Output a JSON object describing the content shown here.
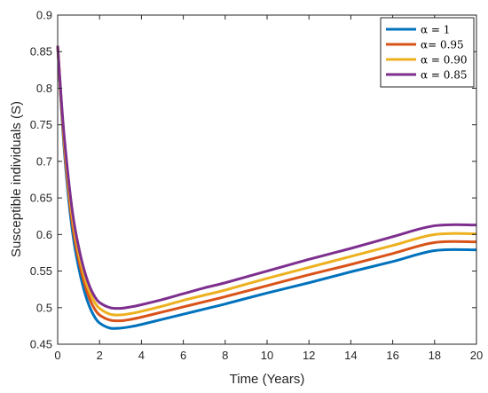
{
  "chart_data": {
    "type": "line",
    "title": "",
    "xlabel": "Time (Years)",
    "ylabel": "Susceptible individuals (S)",
    "xlim": [
      0,
      20
    ],
    "ylim": [
      0.45,
      0.9
    ],
    "xticks": [
      0,
      2,
      4,
      6,
      8,
      10,
      12,
      14,
      16,
      18,
      20
    ],
    "yticks": [
      0.45,
      0.5,
      0.55,
      0.6,
      0.65,
      0.7,
      0.75,
      0.8,
      0.85,
      0.9
    ],
    "xtick_labels": [
      "0",
      "2",
      "4",
      "6",
      "8",
      "10",
      "12",
      "14",
      "16",
      "18",
      "20"
    ],
    "ytick_labels": [
      "0.45",
      "0.5",
      "0.55",
      "0.6",
      "0.65",
      "0.7",
      "0.75",
      "0.8",
      "0.85",
      "0.9"
    ],
    "grid": false,
    "legend_position": "top-right",
    "x": [
      0,
      0.25,
      0.5,
      0.75,
      1,
      1.25,
      1.5,
      1.75,
      2,
      2.5,
      3,
      3.5,
      4,
      5,
      6,
      7,
      8,
      10,
      12,
      14,
      16,
      18,
      20
    ],
    "series": [
      {
        "name": "α = 1",
        "color": "#0072BD",
        "values": [
          0.858,
          0.74,
          0.655,
          0.595,
          0.555,
          0.525,
          0.503,
          0.488,
          0.479,
          0.472,
          0.472,
          0.474,
          0.477,
          0.484,
          0.491,
          0.498,
          0.505,
          0.52,
          0.534,
          0.549,
          0.563,
          0.578,
          0.579
        ]
      },
      {
        "name": "α= 0.95",
        "color": "#D95319",
        "values": [
          0.858,
          0.745,
          0.664,
          0.605,
          0.566,
          0.536,
          0.514,
          0.499,
          0.49,
          0.483,
          0.482,
          0.484,
          0.487,
          0.494,
          0.501,
          0.508,
          0.515,
          0.53,
          0.545,
          0.559,
          0.574,
          0.589,
          0.59
        ]
      },
      {
        "name": "α = 0.90",
        "color": "#EDB120",
        "values": [
          0.858,
          0.75,
          0.672,
          0.614,
          0.575,
          0.545,
          0.523,
          0.508,
          0.499,
          0.491,
          0.49,
          0.492,
          0.495,
          0.502,
          0.51,
          0.517,
          0.524,
          0.54,
          0.555,
          0.57,
          0.585,
          0.6,
          0.601
        ]
      },
      {
        "name": "α = 0.85",
        "color": "#7E2F8E",
        "values": [
          0.858,
          0.755,
          0.68,
          0.622,
          0.583,
          0.553,
          0.531,
          0.516,
          0.507,
          0.5,
          0.499,
          0.501,
          0.504,
          0.511,
          0.519,
          0.527,
          0.534,
          0.55,
          0.566,
          0.581,
          0.597,
          0.612,
          0.613
        ]
      }
    ]
  }
}
